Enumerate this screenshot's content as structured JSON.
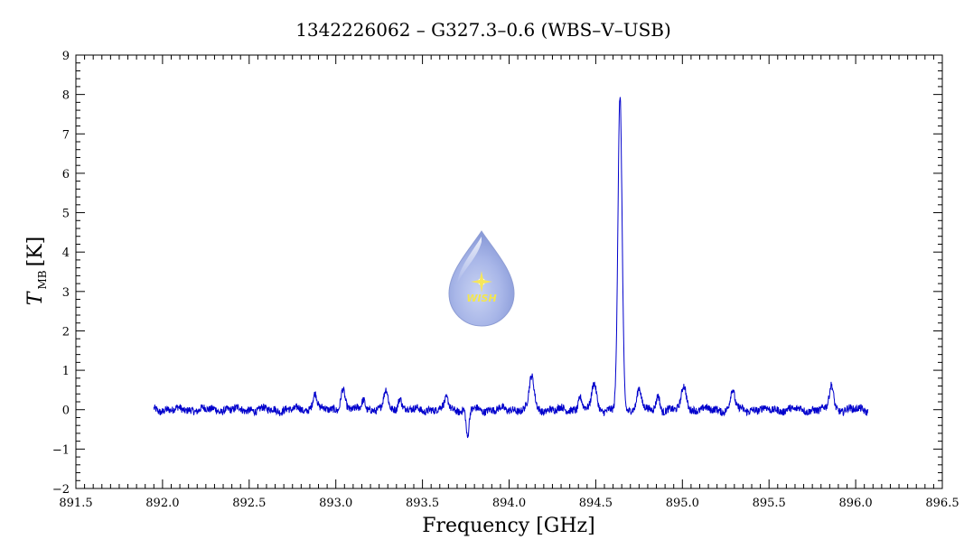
{
  "chart_data": {
    "type": "line",
    "title": "1342226062 – G327.3–0.6 (WBS–V–USB)",
    "xlabel": "Frequency [GHz]",
    "ylabel_main": "T",
    "ylabel_sub": "MB",
    "ylabel_unit": "[K]",
    "xlim": [
      891.5,
      896.5
    ],
    "ylim": [
      -2,
      9
    ],
    "x_ticks": [
      891.5,
      892.0,
      892.5,
      893.0,
      893.5,
      894.0,
      894.5,
      895.0,
      895.5,
      896.0,
      896.5
    ],
    "x_tick_labels": [
      "891.5",
      "892.0",
      "892.5",
      "893.0",
      "893.5",
      "894.0",
      "894.5",
      "895.0",
      "895.5",
      "896.0",
      "896.5"
    ],
    "y_ticks": [
      -2,
      -1,
      0,
      1,
      2,
      3,
      4,
      5,
      6,
      7,
      8,
      9
    ],
    "y_tick_labels": [
      "−2",
      "−1",
      "0",
      "1",
      "2",
      "3",
      "4",
      "5",
      "6",
      "7",
      "8",
      "9"
    ],
    "grid": false,
    "series_color": "#0000cc",
    "series": [
      {
        "x_range": [
          891.95,
          896.07
        ],
        "baseline": 0.0,
        "noise_amplitude": 0.06,
        "features": [
          {
            "x": 892.88,
            "amp": 0.45,
            "width": 0.012
          },
          {
            "x": 893.04,
            "amp": 0.55,
            "width": 0.012
          },
          {
            "x": 893.16,
            "amp": 0.3,
            "width": 0.01
          },
          {
            "x": 893.29,
            "amp": 0.5,
            "width": 0.012
          },
          {
            "x": 893.37,
            "amp": 0.35,
            "width": 0.01
          },
          {
            "x": 893.64,
            "amp": 0.3,
            "width": 0.012
          },
          {
            "x": 893.76,
            "amp": -0.75,
            "width": 0.008
          },
          {
            "x": 894.13,
            "amp": 0.85,
            "width": 0.014
          },
          {
            "x": 894.41,
            "amp": 0.35,
            "width": 0.01
          },
          {
            "x": 894.49,
            "amp": 0.65,
            "width": 0.014
          },
          {
            "x": 894.64,
            "amp": 7.9,
            "width": 0.012
          },
          {
            "x": 894.75,
            "amp": 0.6,
            "width": 0.012
          },
          {
            "x": 894.86,
            "amp": 0.35,
            "width": 0.01
          },
          {
            "x": 895.01,
            "amp": 0.6,
            "width": 0.014
          },
          {
            "x": 895.29,
            "amp": 0.5,
            "width": 0.012
          },
          {
            "x": 895.86,
            "amp": 0.65,
            "width": 0.012
          }
        ]
      }
    ],
    "logo_text": "WISH"
  }
}
